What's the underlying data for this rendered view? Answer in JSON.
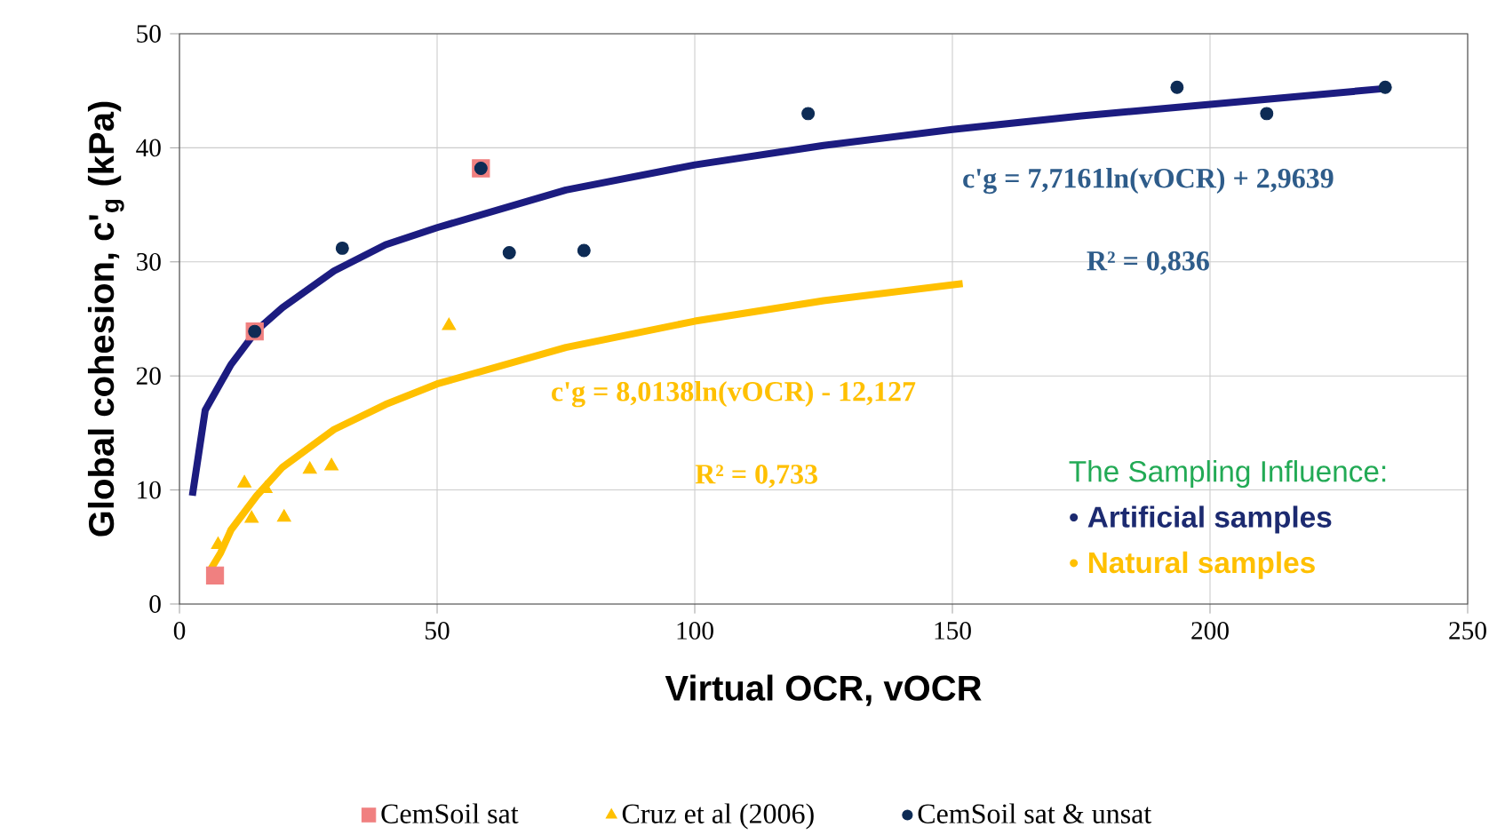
{
  "chart_data": {
    "type": "scatter",
    "xlabel": "Virtual  OCR, vOCR",
    "ylabel": "Global cohesion, c'$_{g}$ (kPa)",
    "xlim": [
      0,
      250
    ],
    "ylim": [
      0,
      50
    ],
    "xticks": [
      0,
      50,
      100,
      150,
      200,
      250
    ],
    "yticks": [
      0,
      10,
      20,
      30,
      40,
      50
    ],
    "grid": true,
    "legend": "bottom",
    "series": [
      {
        "name": "CemSoil sat",
        "marker": "square",
        "color": "#f08080",
        "x": [
          6.9,
          14.6,
          58.5
        ],
        "values": [
          2.5,
          23.9,
          38.2
        ]
      },
      {
        "name": "Cruz et al (2006)",
        "marker": "triangle",
        "color": "#ffc000",
        "x": [
          7.5,
          12.6,
          14,
          16.7,
          20.3,
          25.3,
          29.5,
          52.3
        ],
        "values": [
          5.2,
          10.6,
          7.5,
          10.1,
          7.6,
          11.8,
          12.1,
          24.4
        ]
      },
      {
        "name": "CemSoil sat & unsat",
        "marker": "circle",
        "color": "#0d2b55",
        "x": [
          14.6,
          31.6,
          58.5,
          64,
          78.5,
          122,
          193.6,
          211,
          234
        ],
        "values": [
          23.9,
          31.2,
          38.2,
          30.8,
          31,
          43,
          45.3,
          43,
          45.3
        ]
      },
      {
        "type": "line",
        "marker": "none",
        "color": "#1c1c80",
        "x": [
          2.5,
          5,
          10,
          15,
          20,
          30,
          40,
          50,
          75,
          100,
          125,
          150,
          175,
          200,
          234
        ],
        "values": [
          9.5,
          17,
          21,
          24,
          26,
          29.2,
          31.5,
          33,
          36.3,
          38.5,
          40.2,
          41.6,
          42.8,
          43.8,
          45.2
        ]
      },
      {
        "type": "line",
        "marker": "none",
        "color": "#ffc000",
        "x": [
          6,
          8,
          10,
          15,
          20,
          30,
          40,
          50,
          75,
          100,
          125,
          152
        ],
        "values": [
          3,
          4.5,
          6.5,
          9.5,
          12,
          15.3,
          17.5,
          19.3,
          22.5,
          24.8,
          26.6,
          28.1
        ]
      }
    ],
    "annotations": [
      "c'g = 7,7161ln(vOCR) + 2,9639",
      "R² = 0,836",
      "c'g = 8,0138ln(vOCR) - 12,127",
      "R² = 0,733",
      "The Sampling Influence:",
      "•    **Artificial samples**",
      "•    **Natural samples**"
    ]
  }
}
